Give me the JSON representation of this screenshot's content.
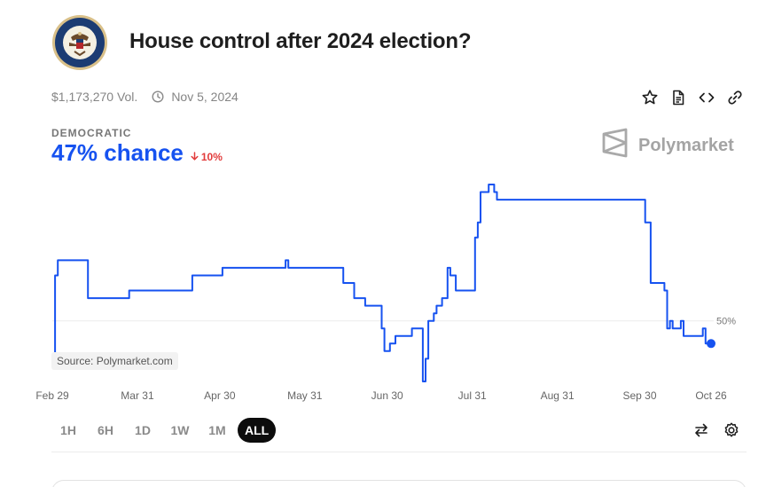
{
  "market": {
    "title": "House control after 2024 election?",
    "volume": "$1,173,270 Vol.",
    "end_date": "Nov 5, 2024",
    "seal_icon": "us-house-seal"
  },
  "toolbar": {
    "icons": [
      "star-icon",
      "document-icon",
      "code-embed-icon",
      "link-icon"
    ]
  },
  "outcome": {
    "label": "DEMOCRATIC",
    "chance": "47% chance",
    "change": "10%",
    "change_direction": "down",
    "chance_color": "#1652f0",
    "change_color": "#e23b3b"
  },
  "brand": {
    "name": "Polymarket"
  },
  "chart_data": {
    "type": "line",
    "series": [
      {
        "color": "#1652f0",
        "points": [
          [
            "Feb 29",
            45
          ],
          [
            "Mar 1",
            56
          ],
          [
            "Mar 2",
            58
          ],
          [
            "Mar 11",
            58
          ],
          [
            "Mar 13",
            53
          ],
          [
            "Mar 17",
            53
          ],
          [
            "Mar 21",
            53
          ],
          [
            "Mar 26",
            53
          ],
          [
            "Mar 28",
            54
          ],
          [
            "Apr 18",
            54
          ],
          [
            "Apr 20",
            56
          ],
          [
            "Apr 26",
            56
          ],
          [
            "May 1",
            57
          ],
          [
            "May 23",
            57
          ],
          [
            "May 24",
            58
          ],
          [
            "May 25",
            57
          ],
          [
            "Jun 12",
            57
          ],
          [
            "Jun 14",
            55
          ],
          [
            "Jun 18",
            53
          ],
          [
            "Jun 22",
            52
          ],
          [
            "Jun 27",
            52
          ],
          [
            "Jun 28",
            49
          ],
          [
            "Jun 29",
            46
          ],
          [
            "Jul 1",
            47
          ],
          [
            "Jul 3",
            48
          ],
          [
            "Jul 7",
            48
          ],
          [
            "Jul 9",
            49
          ],
          [
            "Jul 12",
            49
          ],
          [
            "Jul 13",
            42
          ],
          [
            "Jul 14",
            45
          ],
          [
            "Jul 15",
            50
          ],
          [
            "Jul 17",
            51
          ],
          [
            "Jul 18",
            52
          ],
          [
            "Jul 20",
            53
          ],
          [
            "Jul 22",
            57
          ],
          [
            "Jul 23",
            56
          ],
          [
            "Jul 25",
            54
          ],
          [
            "Jul 31",
            54
          ],
          [
            "Aug 1",
            61
          ],
          [
            "Aug 2",
            63
          ],
          [
            "Aug 3",
            67
          ],
          [
            "Aug 4",
            67
          ],
          [
            "Aug 6",
            68
          ],
          [
            "Aug 8",
            67
          ],
          [
            "Aug 9",
            66
          ],
          [
            "Aug 11",
            66
          ],
          [
            "Aug 12",
            66
          ],
          [
            "Aug 14",
            66
          ],
          [
            "Aug 18",
            66
          ],
          [
            "Aug 21",
            66
          ],
          [
            "Aug 24",
            66
          ],
          [
            "Aug 28",
            66
          ],
          [
            "Sep 1",
            66
          ],
          [
            "Sep 6",
            66
          ],
          [
            "Sep 13",
            66
          ],
          [
            "Sep 27",
            66
          ],
          [
            "Oct 1",
            66
          ],
          [
            "Oct 2",
            63
          ],
          [
            "Oct 4",
            55
          ],
          [
            "Oct 6",
            55
          ],
          [
            "Oct 9",
            54
          ],
          [
            "Oct 10",
            49
          ],
          [
            "Oct 11",
            50
          ],
          [
            "Oct 12",
            49
          ],
          [
            "Oct 15",
            50
          ],
          [
            "Oct 16",
            48
          ],
          [
            "Oct 22",
            48
          ],
          [
            "Oct 23",
            49
          ],
          [
            "Oct 24",
            47
          ],
          [
            "Oct 26",
            47
          ]
        ]
      }
    ],
    "x_ticks": [
      "Feb 29",
      "Mar 31",
      "Apr 30",
      "May 31",
      "Jun 30",
      "Jul 31",
      "Aug 31",
      "Sep 30",
      "Oct 26"
    ],
    "y_ticks": [
      50
    ],
    "y_tick_suffix": "%",
    "y_range": [
      42,
      68
    ],
    "grid": "horizontal",
    "source_label": "Source: Polymarket.com",
    "end_marker": true
  },
  "ranges": {
    "options": [
      "1H",
      "6H",
      "1D",
      "1W",
      "1M",
      "ALL"
    ],
    "selected": "ALL"
  },
  "controls": {
    "icons": [
      "swap-icon",
      "settings-gear-icon"
    ]
  }
}
